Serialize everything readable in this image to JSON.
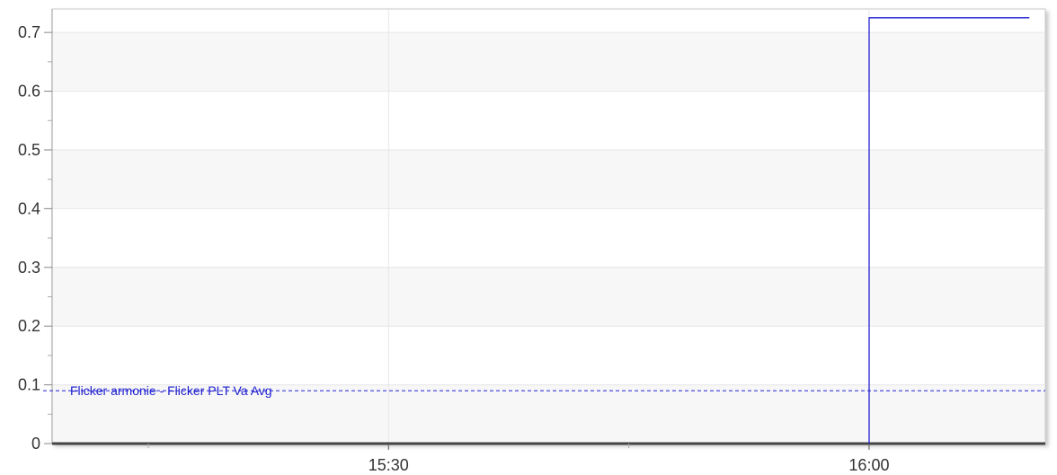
{
  "chart_data": {
    "type": "line",
    "title": "",
    "xlabel": "",
    "ylabel": "",
    "x_ticks": [
      "15:30",
      "16:00"
    ],
    "x_range": [
      "15:09",
      "16:11"
    ],
    "ylim": [
      0,
      0.74
    ],
    "y_ticks": [
      {
        "value": 0,
        "label": "0"
      },
      {
        "value": 0.1,
        "label": "0.1"
      },
      {
        "value": 0.2,
        "label": "0.2"
      },
      {
        "value": 0.3,
        "label": "0.3"
      },
      {
        "value": 0.4,
        "label": "0.4"
      },
      {
        "value": 0.5,
        "label": "0.5"
      },
      {
        "value": 0.6,
        "label": "0.6"
      },
      {
        "value": 0.7,
        "label": "0.7"
      }
    ],
    "grid": true,
    "series": [
      {
        "name": "Flicker armonie - Flicker PLT Va Avg",
        "color": "#1f1fd1",
        "points": [
          {
            "x": "16:00",
            "y": 0
          },
          {
            "x": "16:00",
            "y": 0.12
          },
          {
            "x": "16:00",
            "y": 0.36
          },
          {
            "x": "16:00",
            "y": 0.6
          },
          {
            "x": "16:00",
            "y": 0.725
          },
          {
            "x": "16:10",
            "y": 0.725
          }
        ]
      }
    ],
    "reference_line": {
      "value": 0.09,
      "label": "Flicker armonie - Flicker PLT Va Avg",
      "style": "dashed",
      "color": "#1f1fd1"
    }
  }
}
